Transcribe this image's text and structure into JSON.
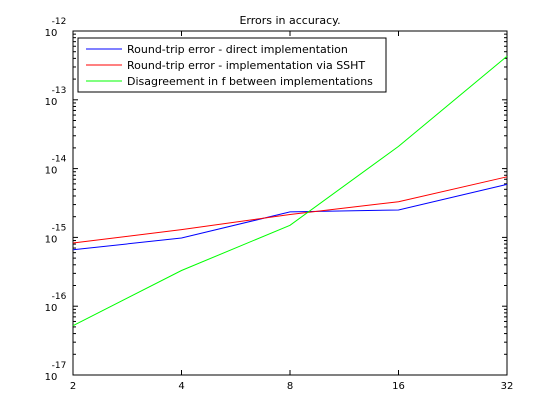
{
  "chart_data": {
    "type": "line",
    "title": "Errors in accuracy.",
    "xlabel": "",
    "ylabel": "",
    "x_scale": "log2",
    "y_scale": "log10",
    "x": [
      2,
      4,
      8,
      16,
      32
    ],
    "x_tick_labels": [
      "2",
      "4",
      "8",
      "16",
      "32"
    ],
    "xlim": [
      2,
      32
    ],
    "ylim": [
      1e-17,
      1e-12
    ],
    "y_ticks": [
      {
        "value": 1e-12,
        "base": "10",
        "exp": "-12"
      },
      {
        "value": 1e-13,
        "base": "10",
        "exp": "-13"
      },
      {
        "value": 1e-14,
        "base": "10",
        "exp": "-14"
      },
      {
        "value": 1e-15,
        "base": "10",
        "exp": "-15"
      },
      {
        "value": 1e-16,
        "base": "10",
        "exp": "-16"
      },
      {
        "value": 1e-17,
        "base": "10",
        "exp": "-17"
      }
    ],
    "grid": false,
    "legend_position": "top-left",
    "series": [
      {
        "name": "Round-trip error - direct implementation",
        "color": "#0000ff",
        "values": [
          6.6e-16,
          9.8e-16,
          2.35e-15,
          2.5e-15,
          5.9e-15
        ]
      },
      {
        "name": "Round-trip error - implementation via SSHT",
        "color": "#ff0000",
        "values": [
          8.3e-16,
          1.3e-15,
          2.15e-15,
          3.3e-15,
          7.6e-15
        ]
      },
      {
        "name": "Disagreement in f between implementations",
        "color": "#00ff00",
        "values": [
          5.2e-17,
          3.3e-16,
          1.5e-15,
          2.1e-14,
          4.3e-13
        ]
      }
    ]
  }
}
